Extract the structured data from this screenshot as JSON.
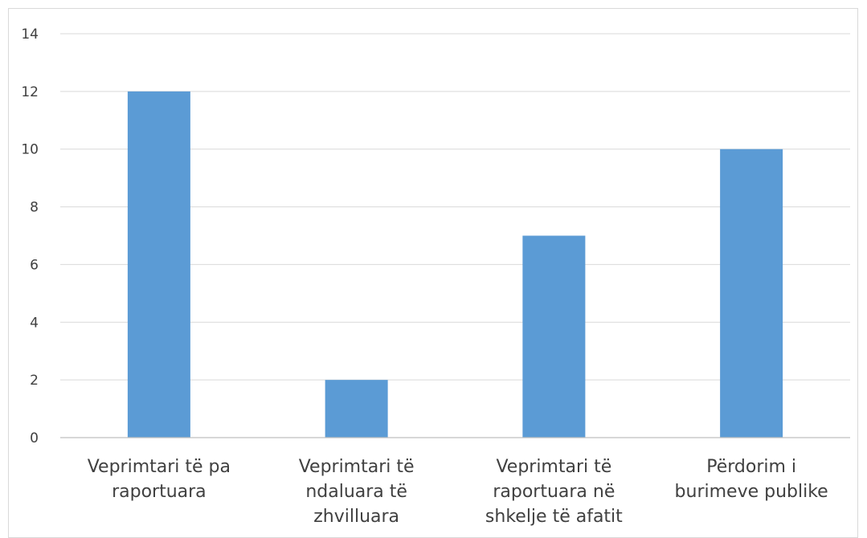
{
  "chart_data": {
    "type": "bar",
    "title": "",
    "xlabel": "",
    "ylabel": "",
    "categories": [
      "Veprimtari të pa raportuara",
      "Veprimtari të ndaluara të zhvilluara",
      "Veprimtari të raportuara në shkelje të afatit",
      "Përdorim i burimeve publike"
    ],
    "category_label_lines": [
      [
        "Veprimtari të pa",
        "raportuara"
      ],
      [
        "Veprimtari të",
        "ndaluara të",
        "zhvilluara"
      ],
      [
        "Veprimtari të",
        "raportuara në",
        "shkelje të afatit"
      ],
      [
        "Përdorim i",
        "burimeve publike"
      ]
    ],
    "values": [
      12,
      2,
      7,
      10
    ],
    "ylim": [
      0,
      14
    ],
    "yticks": [
      0,
      2,
      4,
      6,
      8,
      10,
      12,
      14
    ],
    "grid": true,
    "legend": "none",
    "colors": {
      "bar": "#5b9bd5",
      "grid": "#d9d9d9",
      "axis": "#bfbfbf",
      "text": "#404040"
    }
  }
}
